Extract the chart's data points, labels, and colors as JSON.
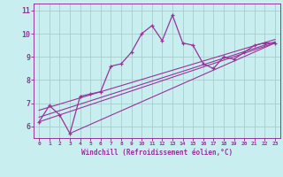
{
  "background_color": "#c8eef0",
  "grid_color": "#aacccc",
  "line_color": "#993399",
  "xlabel": "Windchill (Refroidissement éolien,°C)",
  "ylabel_ticks": [
    6,
    7,
    8,
    9,
    10,
    11
  ],
  "xlim": [
    -0.5,
    23.5
  ],
  "ylim": [
    5.5,
    11.3
  ],
  "xticks": [
    0,
    1,
    2,
    3,
    4,
    5,
    6,
    7,
    8,
    9,
    10,
    11,
    12,
    13,
    14,
    15,
    16,
    17,
    18,
    19,
    20,
    21,
    22,
    23
  ],
  "main_x": [
    0,
    1,
    2,
    3,
    4,
    5,
    6,
    7,
    8,
    9,
    10,
    11,
    12,
    13,
    14,
    15,
    16,
    17,
    18,
    19,
    20,
    21,
    22,
    23
  ],
  "main_y": [
    6.2,
    6.9,
    6.5,
    5.7,
    7.3,
    7.4,
    7.5,
    8.6,
    8.7,
    9.2,
    10.0,
    10.35,
    9.7,
    10.8,
    9.6,
    9.5,
    8.7,
    8.5,
    9.0,
    8.9,
    9.2,
    9.5,
    9.6,
    9.6
  ],
  "trend1_x": [
    0,
    23
  ],
  "trend1_y": [
    6.2,
    9.6
  ],
  "trend2_x": [
    0,
    23
  ],
  "trend2_y": [
    6.4,
    9.65
  ],
  "trend3_x": [
    0,
    23
  ],
  "trend3_y": [
    6.7,
    9.75
  ],
  "trend4_x": [
    3,
    23
  ],
  "trend4_y": [
    5.7,
    9.6
  ]
}
